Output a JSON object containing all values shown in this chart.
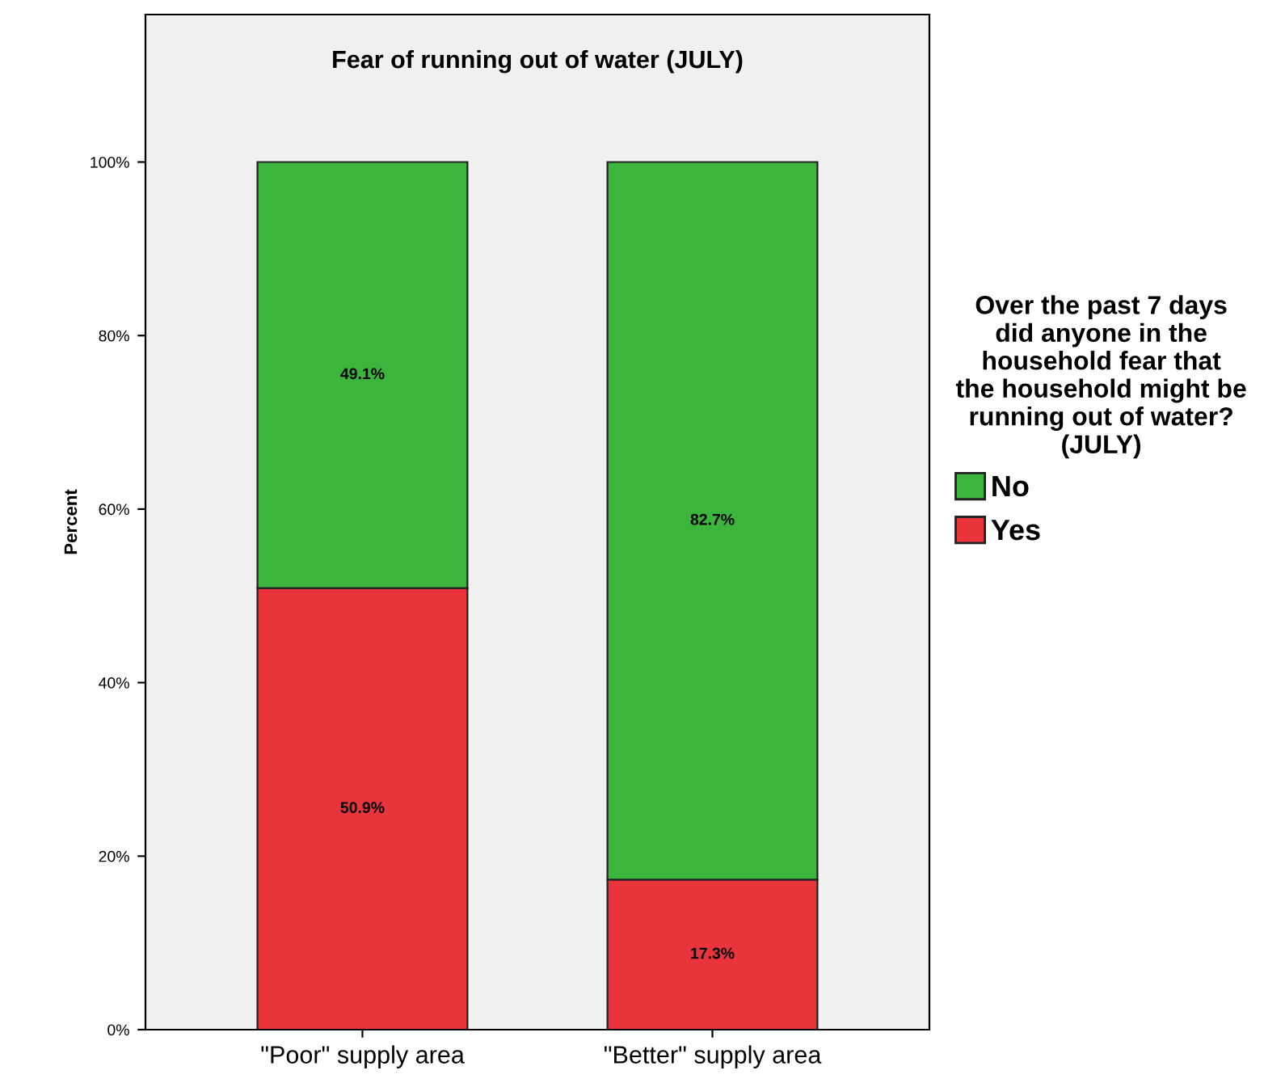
{
  "chart_data": {
    "type": "bar",
    "stacked": true,
    "title": "Fear of running out of water (JULY)",
    "ylabel": "Percent",
    "categories": [
      "\"Poor\" supply area",
      "\"Better\" supply area"
    ],
    "series": [
      {
        "name": "Yes",
        "color": "#e8343a",
        "values": [
          50.9,
          17.3
        ],
        "value_labels": [
          "50.9%",
          "17.3%"
        ]
      },
      {
        "name": "No",
        "color": "#3cb53c",
        "values": [
          49.1,
          82.7
        ],
        "value_labels": [
          "49.1%",
          "82.7%"
        ]
      }
    ],
    "legend_title": "Over the past 7 days did anyone in the household fear that the household might be running out of water? (JULY)",
    "legend": "right",
    "ylim": [
      0,
      117
    ],
    "yticks": [
      {
        "value": 0,
        "label": "0%"
      },
      {
        "value": 20,
        "label": "20%"
      },
      {
        "value": 40,
        "label": "40%"
      },
      {
        "value": 60,
        "label": "60%"
      },
      {
        "value": 80,
        "label": "80%"
      },
      {
        "value": 100,
        "label": "100%"
      }
    ],
    "grid": false
  }
}
